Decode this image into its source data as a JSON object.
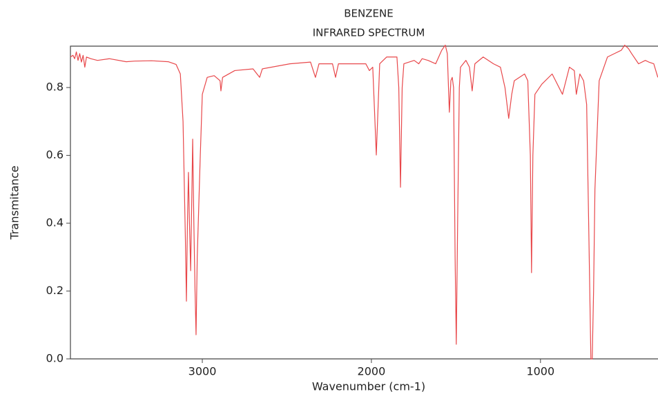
{
  "chart_data": {
    "type": "line",
    "title": "BENZENE",
    "subtitle": "INFRARED SPECTRUM",
    "x_label": "Wavenumber (cm-1)",
    "y_label": "Transmitance",
    "color": "#e8474a",
    "xlim": [
      3780,
      305
    ],
    "ylim": [
      0,
      0.922
    ],
    "xticks": [
      3000,
      2000,
      1000
    ],
    "yticks": [
      {
        "value": 0,
        "label": "0.0"
      },
      0.2,
      0.4,
      0.6,
      0.8
    ],
    "x": [
      3780,
      3765,
      3755,
      3745,
      3735,
      3725,
      3715,
      3705,
      3695,
      3685,
      3660,
      3620,
      3550,
      3450,
      3400,
      3300,
      3200,
      3155,
      3130,
      3114,
      3100,
      3094,
      3088,
      3082,
      3076,
      3069,
      3063,
      3057,
      3050,
      3043,
      3037,
      3030,
      3012,
      3000,
      2971,
      2930,
      2895,
      2890,
      2880,
      2808,
      2700,
      2661,
      2645,
      2482,
      2360,
      2331,
      2310,
      2230,
      2212,
      2195,
      2155,
      2033,
      2012,
      1992,
      1971,
      1951,
      1910,
      1849,
      1838,
      1828,
      1818,
      1808,
      1747,
      1720,
      1700,
      1665,
      1620,
      1584,
      1563,
      1551,
      1539,
      1530,
      1522,
      1514,
      1505,
      1498,
      1490,
      1480,
      1473,
      1441,
      1420,
      1404,
      1388,
      1339,
      1278,
      1237,
      1210,
      1188,
      1170,
      1155,
      1094,
      1075,
      1060,
      1053,
      1045,
      1033,
      992,
      931,
      870,
      829,
      800,
      788,
      767,
      745,
      727,
      715,
      702,
      694,
      686,
      678,
      653,
      604,
      522,
      502,
      480,
      461,
      420,
      380,
      359,
      330,
      306
    ],
    "values": [
      0.89,
      0.895,
      0.885,
      0.905,
      0.88,
      0.9,
      0.875,
      0.895,
      0.86,
      0.89,
      0.885,
      0.88,
      0.885,
      0.876,
      0.878,
      0.879,
      0.876,
      0.868,
      0.84,
      0.7,
      0.35,
      0.17,
      0.4,
      0.55,
      0.4,
      0.26,
      0.45,
      0.648,
      0.4,
      0.2,
      0.071,
      0.3,
      0.6,
      0.78,
      0.83,
      0.835,
      0.82,
      0.79,
      0.83,
      0.85,
      0.855,
      0.83,
      0.855,
      0.87,
      0.875,
      0.83,
      0.87,
      0.87,
      0.83,
      0.87,
      0.87,
      0.87,
      0.85,
      0.86,
      0.601,
      0.87,
      0.89,
      0.89,
      0.8,
      0.506,
      0.8,
      0.87,
      0.88,
      0.87,
      0.885,
      0.88,
      0.87,
      0.91,
      0.925,
      0.9,
      0.727,
      0.82,
      0.83,
      0.8,
      0.3,
      0.043,
      0.4,
      0.8,
      0.86,
      0.88,
      0.86,
      0.79,
      0.87,
      0.89,
      0.87,
      0.86,
      0.8,
      0.709,
      0.78,
      0.82,
      0.84,
      0.82,
      0.6,
      0.254,
      0.6,
      0.78,
      0.81,
      0.84,
      0.78,
      0.86,
      0.85,
      0.78,
      0.84,
      0.82,
      0.75,
      0.4,
      0,
      0,
      0.2,
      0.5,
      0.82,
      0.89,
      0.91,
      0.925,
      0.915,
      0.9,
      0.87,
      0.88,
      0.875,
      0.87,
      0.83
    ]
  }
}
